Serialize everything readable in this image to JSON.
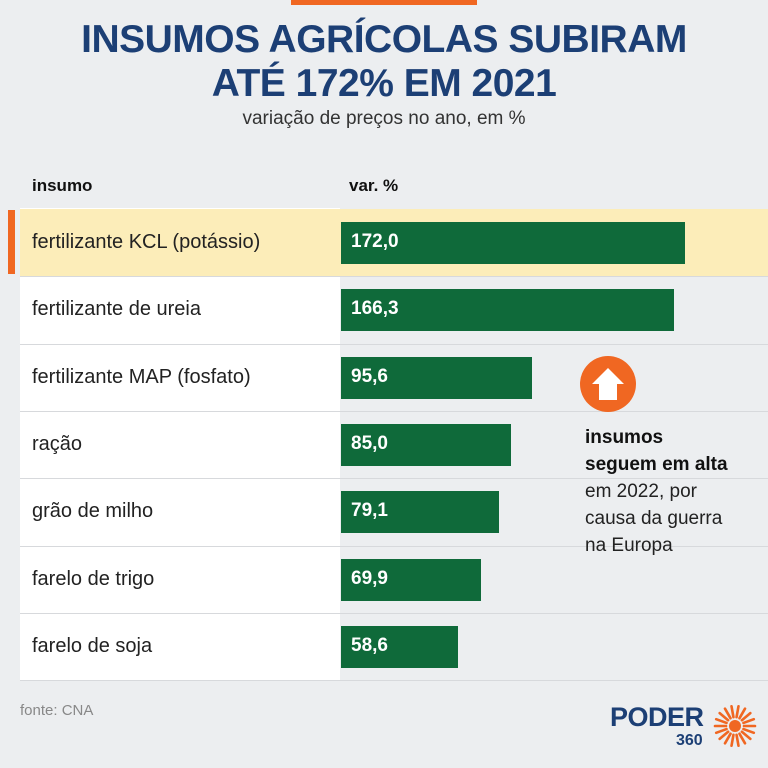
{
  "header": {
    "title_line1": "INSUMOS AGRÍCOLAS SUBIRAM",
    "title_line2": "ATÉ 172% EM 2021",
    "subtitle": "variação de preços no ano, em %"
  },
  "table": {
    "col_insumo": "insumo",
    "col_var": "var. %"
  },
  "chart_data": {
    "type": "bar",
    "orientation": "horizontal",
    "title": "INSUMOS AGRÍCOLAS SUBIRAM ATÉ 172% EM 2021",
    "subtitle": "variação de preços no ano, em %",
    "categories": [
      "fertilizante KCL (potássio)",
      "fertilizante de ureia",
      "fertilizante MAP (fosfato)",
      "ração",
      "grão de milho",
      "farelo de trigo",
      "farelo de soja"
    ],
    "values": [
      172.0,
      166.3,
      95.6,
      85.0,
      79.1,
      69.9,
      58.6
    ],
    "value_labels": [
      "172,0",
      "166,3",
      "95,6",
      "85,0",
      "79,1",
      "69,9",
      "58,6"
    ],
    "highlighted_index": 0,
    "xlim": [
      0,
      210
    ],
    "grid": false,
    "bar_color": "#0f6a3a",
    "highlight_color": "#fcedb9"
  },
  "note": {
    "line_bold1": "insumos",
    "line_bold2": "seguem em alta",
    "line3": "em 2022, por",
    "line4": "causa da guerra",
    "line5": "na Europa",
    "icon": "arrow-up-icon"
  },
  "footer": {
    "source": "fonte: CNA",
    "logo_word": "PODER",
    "logo_number": "360"
  },
  "colors": {
    "accent": "#f06722",
    "title": "#1c3f75",
    "background": "#eceef0"
  }
}
